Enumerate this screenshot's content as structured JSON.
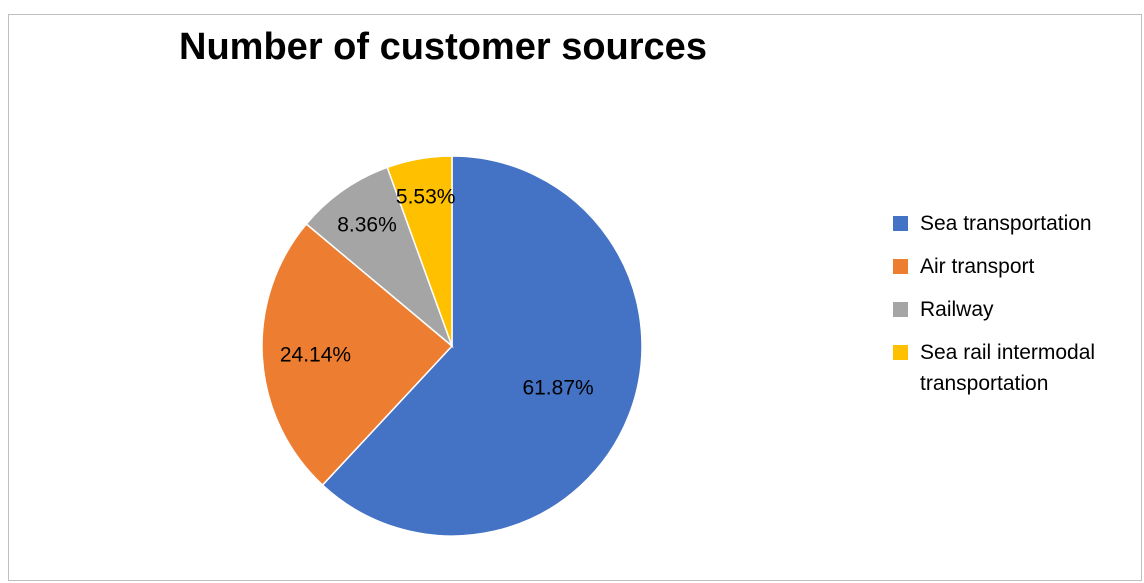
{
  "chart_data": {
    "type": "pie",
    "title": "Number of customer sources",
    "categories": [
      "Sea transportation",
      "Air transport",
      "Railway",
      "Sea rail intermodal transportation"
    ],
    "values": [
      61.87,
      24.14,
      8.36,
      5.53
    ],
    "labels": [
      "61.87%",
      "24.14%",
      "8.36%",
      "5.53%"
    ],
    "colors": [
      "#4472C4",
      "#ED7D31",
      "#A5A5A5",
      "#FFC000"
    ],
    "legend": "right",
    "start_angle": "top-clockwise"
  }
}
